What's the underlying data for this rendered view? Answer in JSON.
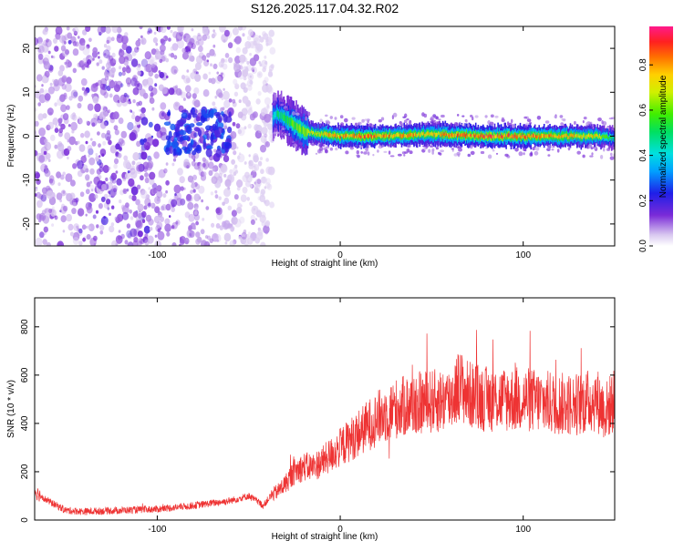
{
  "title": "S126.2025.117.04.32.R02",
  "top_panel": {
    "xlabel": "Height of straight line (km)",
    "ylabel": "Frequency (Hz)",
    "colorbar_label": "Normalized spectral amplitude",
    "xlim": [
      -167,
      150
    ],
    "ylim": [
      -25,
      25
    ],
    "xticks": [
      -100,
      0,
      100
    ],
    "xtick_labels": [
      "-100",
      "0",
      "100"
    ],
    "yticks": [
      -20,
      -10,
      0,
      10,
      20
    ],
    "ytick_labels": [
      "-20",
      "-10",
      "0",
      "10",
      "20"
    ],
    "colorbar_ticks": [
      0.0,
      0.2,
      0.4,
      0.6,
      0.8
    ],
    "colorbar_tick_labels": [
      "0.0",
      "0.2",
      "0.4",
      "0.6",
      "0.8"
    ],
    "colorbar_range": [
      0,
      0.97
    ]
  },
  "bottom_panel": {
    "xlabel": "Height of straight line (km)",
    "ylabel": "SNR (10 * v/v)",
    "xlim": [
      -167,
      150
    ],
    "ylim": [
      0,
      920
    ],
    "xticks": [
      -100,
      0,
      100
    ],
    "xtick_labels": [
      "-100",
      "0",
      "100"
    ],
    "yticks": [
      0,
      200,
      400,
      600,
      800
    ],
    "ytick_labels": [
      "0",
      "200",
      "400",
      "600",
      "800"
    ],
    "line_color": "#ee3333"
  },
  "chart_data": [
    {
      "type": "heatmap",
      "xlabel": "Height of straight line (km)",
      "ylabel": "Frequency (Hz)",
      "colorbar": "Normalized spectral amplitude",
      "xlim": [
        -167,
        150
      ],
      "ylim": [
        -25,
        25
      ],
      "description_points": {
        "x": [
          -160,
          -120,
          -80,
          -40,
          -34,
          -30,
          -20,
          0,
          20,
          50,
          80,
          110,
          140,
          150
        ],
        "dominant_freq": [
          null,
          null,
          0,
          4,
          5,
          4,
          1,
          0,
          0,
          0.5,
          0,
          0,
          0,
          -0.5
        ],
        "amplitude": [
          0.1,
          0.15,
          0.3,
          0.35,
          0.55,
          0.6,
          0.7,
          0.9,
          0.9,
          0.85,
          0.95,
          0.9,
          0.8,
          0.5
        ]
      }
    },
    {
      "type": "line",
      "xlabel": "Height of straight line (km)",
      "ylabel": "SNR (10 * v/v)",
      "xlim": [
        -167,
        150
      ],
      "ylim": [
        0,
        920
      ],
      "x": [
        -167,
        -160,
        -150,
        -140,
        -120,
        -100,
        -80,
        -60,
        -50,
        -42,
        -38,
        -34,
        -30,
        -25,
        -20,
        -15,
        -10,
        -5,
        0,
        5,
        10,
        20,
        30,
        40,
        50,
        60,
        65,
        70,
        80,
        90,
        100,
        110,
        120,
        130,
        140,
        145,
        150
      ],
      "y": [
        120,
        80,
        40,
        35,
        40,
        45,
        60,
        80,
        100,
        60,
        100,
        120,
        150,
        200,
        220,
        220,
        240,
        270,
        300,
        330,
        360,
        420,
        460,
        480,
        490,
        500,
        560,
        520,
        500,
        500,
        500,
        490,
        480,
        480,
        500,
        450,
        500
      ]
    }
  ]
}
